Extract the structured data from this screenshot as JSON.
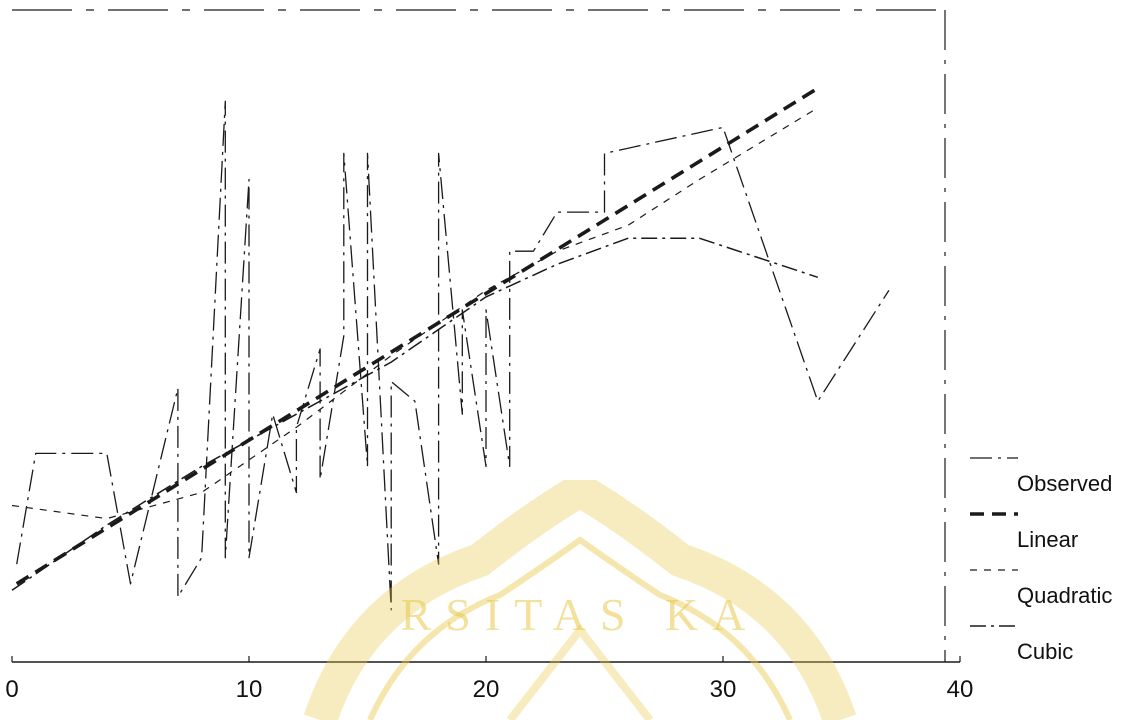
{
  "chart_data": {
    "type": "line",
    "title": "",
    "xlabel": "",
    "ylabel": "",
    "xlim": [
      0,
      40
    ],
    "ylim": [
      0,
      10
    ],
    "x_ticks": [
      0,
      10,
      20,
      30,
      40
    ],
    "x_tick_labels": [
      "0",
      "10",
      "20",
      "30",
      "40"
    ],
    "grid": false,
    "legend_position": "bottom-right",
    "colors": {
      "line": "#1a1a1a",
      "watermark": "#e8c84a"
    },
    "series": [
      {
        "name": "Observed",
        "style": "dash-dot-thin",
        "points": [
          [
            0.2,
            1.5
          ],
          [
            1,
            3.2
          ],
          [
            4,
            3.2
          ],
          [
            5,
            1.2
          ],
          [
            7,
            4.2
          ],
          [
            7,
            1.0
          ],
          [
            8,
            1.6
          ],
          [
            9,
            8.6
          ],
          [
            9,
            1.6
          ],
          [
            10,
            7.4
          ],
          [
            10,
            1.6
          ],
          [
            11,
            3.8
          ],
          [
            12,
            2.6
          ],
          [
            12,
            3.6
          ],
          [
            13,
            4.8
          ],
          [
            13,
            2.8
          ],
          [
            14,
            5.0
          ],
          [
            14,
            7.8
          ],
          [
            15,
            3.0
          ],
          [
            15,
            7.8
          ],
          [
            16,
            0.8
          ],
          [
            16,
            4.3
          ],
          [
            17,
            4.0
          ],
          [
            18,
            1.5
          ],
          [
            18,
            7.8
          ],
          [
            19,
            3.8
          ],
          [
            19,
            5.4
          ],
          [
            20,
            3.0
          ],
          [
            20,
            5.4
          ],
          [
            21,
            3.0
          ],
          [
            21,
            6.3
          ],
          [
            22,
            6.3
          ],
          [
            23,
            6.9
          ],
          [
            25,
            6.9
          ],
          [
            25,
            7.8
          ],
          [
            30,
            8.2
          ],
          [
            34,
            4.0
          ],
          [
            37,
            5.7
          ]
        ]
      },
      {
        "name": "Linear",
        "style": "dashed-thick",
        "points": [
          [
            0.2,
            1.2
          ],
          [
            34,
            8.8
          ]
        ]
      },
      {
        "name": "Quadratic",
        "style": "dashed-thin",
        "points": [
          [
            0,
            2.4
          ],
          [
            4,
            2.2
          ],
          [
            8,
            2.6
          ],
          [
            12,
            3.6
          ],
          [
            16,
            4.7
          ],
          [
            20,
            5.7
          ],
          [
            23,
            6.3
          ],
          [
            26,
            6.7
          ],
          [
            29,
            7.4
          ],
          [
            34,
            8.5
          ]
        ]
      },
      {
        "name": "Cubic",
        "style": "dash-dot",
        "points": [
          [
            0,
            1.1
          ],
          [
            4,
            2.1
          ],
          [
            8,
            3.0
          ],
          [
            12,
            3.8
          ],
          [
            16,
            4.6
          ],
          [
            20,
            5.6
          ],
          [
            23,
            6.1
          ],
          [
            26,
            6.5
          ],
          [
            29,
            6.5
          ],
          [
            34,
            5.9
          ]
        ]
      }
    ]
  },
  "legend": {
    "items": [
      {
        "label": "Observed"
      },
      {
        "label": "Linear"
      },
      {
        "label": "Quadratic"
      },
      {
        "label": "Cubic"
      }
    ]
  },
  "watermark": {
    "text": "RSITAS KA",
    "color": "#e8c84a"
  }
}
